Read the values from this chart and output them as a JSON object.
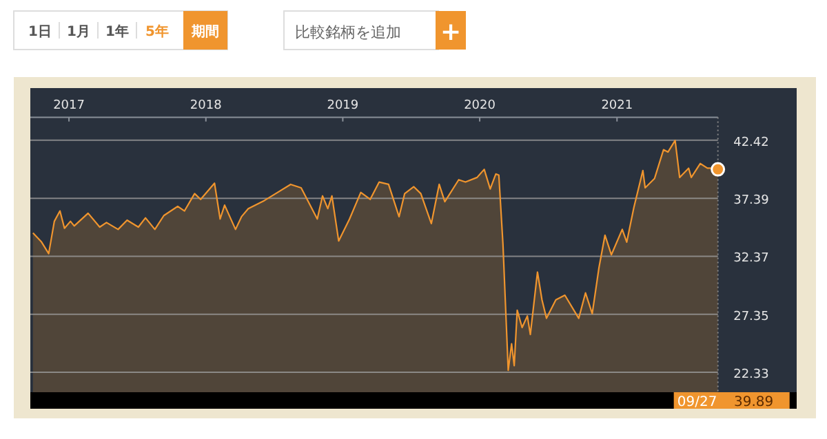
{
  "chart_data": {
    "type": "area",
    "color": "#f0952e",
    "x": [
      "2016-09-27",
      "2016-10-20",
      "2016-11-08",
      "2016-11-23",
      "2016-12-08",
      "2016-12-20",
      "2017-01-05",
      "2017-01-15",
      "2017-02-21",
      "2017-03-24",
      "2017-04-11",
      "2017-05-12",
      "2017-06-05",
      "2017-07-05",
      "2017-07-24",
      "2017-08-18",
      "2017-09-11",
      "2017-10-18",
      "2017-11-05",
      "2017-12-02",
      "2017-12-18",
      "2018-01-24",
      "2018-02-08",
      "2018-02-20",
      "2018-03-21",
      "2018-04-06",
      "2018-04-24",
      "2018-06-06",
      "2018-07-06",
      "2018-08-15",
      "2018-09-12",
      "2018-10-06",
      "2018-10-25",
      "2018-11-08",
      "2018-11-22",
      "2018-12-03",
      "2018-12-21",
      "2019-01-19",
      "2019-02-18",
      "2019-03-15",
      "2019-04-08",
      "2019-05-03",
      "2019-05-31",
      "2019-06-15",
      "2019-07-09",
      "2019-07-28",
      "2019-08-25",
      "2019-09-15",
      "2019-09-30",
      "2019-11-06",
      "2019-11-24",
      "2019-12-25",
      "2020-01-13",
      "2020-01-29",
      "2020-02-13",
      "2020-02-21",
      "2020-03-03",
      "2020-03-17",
      "2020-03-26",
      "2020-04-02",
      "2020-04-10",
      "2020-04-23",
      "2020-05-07",
      "2020-05-15",
      "2020-06-03",
      "2020-06-15",
      "2020-06-27",
      "2020-07-22",
      "2020-08-15",
      "2020-09-21",
      "2020-10-09",
      "2020-10-27",
      "2020-11-14",
      "2020-11-30",
      "2020-12-17",
      "2021-01-15",
      "2021-01-27",
      "2021-02-15",
      "2021-03-11",
      "2021-03-17",
      "2021-04-11",
      "2021-05-05",
      "2021-05-17",
      "2021-06-05",
      "2021-06-17",
      "2021-07-11",
      "2021-07-18",
      "2021-08-11",
      "2021-08-30",
      "2021-09-11",
      "2021-09-27"
    ],
    "values": [
      34.4,
      33.6,
      32.6,
      35.4,
      36.3,
      34.8,
      35.4,
      35.0,
      36.1,
      34.9,
      35.3,
      34.7,
      35.5,
      34.9,
      35.7,
      34.7,
      35.9,
      36.7,
      36.3,
      37.8,
      37.3,
      38.7,
      35.6,
      36.8,
      34.7,
      35.8,
      36.5,
      37.2,
      37.8,
      38.6,
      38.3,
      36.8,
      35.6,
      37.6,
      36.5,
      37.6,
      33.7,
      35.6,
      37.9,
      37.3,
      38.8,
      38.6,
      35.8,
      37.8,
      38.4,
      37.8,
      35.2,
      38.6,
      37.1,
      39.0,
      38.8,
      39.2,
      39.9,
      38.2,
      39.5,
      39.4,
      33.4,
      22.5,
      24.8,
      22.9,
      27.7,
      26.2,
      27.2,
      25.6,
      31.0,
      28.6,
      27.0,
      28.6,
      29.0,
      27.0,
      29.2,
      27.4,
      31.4,
      34.2,
      32.5,
      34.7,
      33.6,
      36.6,
      39.8,
      38.3,
      39.1,
      41.6,
      41.4,
      42.4,
      39.2,
      40.0,
      39.2,
      40.4,
      40.0,
      40.0,
      39.9
    ],
    "xlim": [
      "2016-09-20",
      "2022-04-25"
    ],
    "ylim": [
      20.6,
      44.4
    ],
    "xticks": [
      {
        "value": "2017-01-01",
        "label": "2017"
      },
      {
        "value": "2018-01-01",
        "label": "2018"
      },
      {
        "value": "2019-01-01",
        "label": "2019"
      },
      {
        "value": "2020-01-01",
        "label": "2020"
      },
      {
        "value": "2021-01-01",
        "label": "2021"
      }
    ],
    "yticks": [
      {
        "value": 22.33,
        "label": "22.33"
      },
      {
        "value": 27.35,
        "label": "27.35"
      },
      {
        "value": 32.37,
        "label": "32.37"
      },
      {
        "value": 37.39,
        "label": "37.39"
      },
      {
        "value": 42.42,
        "label": "42.42"
      }
    ],
    "grid": "y",
    "ref_lines": [
      {
        "axis": "x",
        "value": "2021-09-27",
        "color": "#888888",
        "line_style": "dotted"
      }
    ],
    "annotations": [
      "1日",
      "1月",
      "1年",
      "5年",
      "期間",
      "比較銘柄を追加",
      "+",
      "09/27",
      "39.89"
    ]
  }
}
